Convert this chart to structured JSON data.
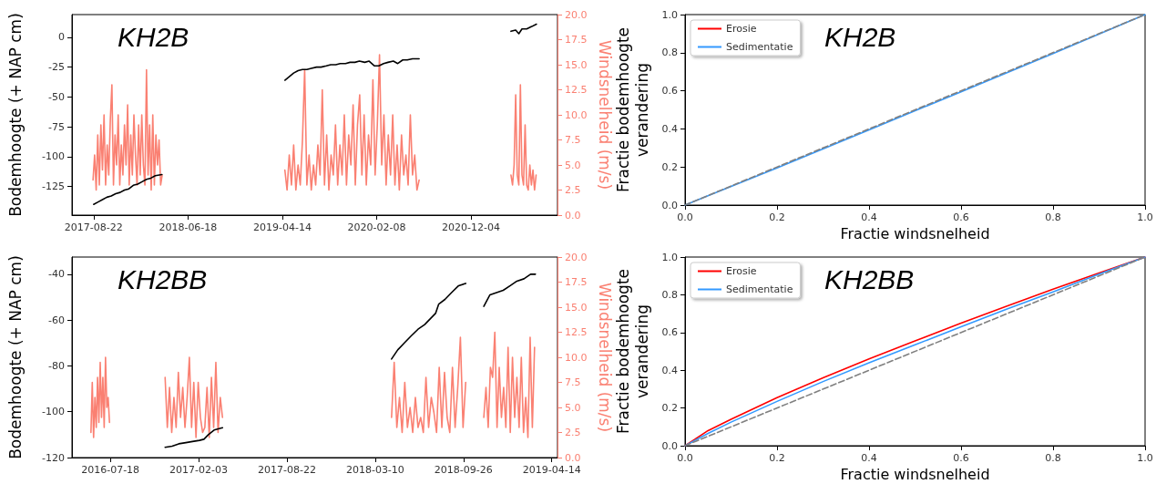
{
  "chart_data": [
    {
      "type": "line",
      "title": "KH2B",
      "ylabel": "Bodemhoogte (+ NAP cm)",
      "y2label": "Windsnelheid (m/s)",
      "xlim": [
        "2017-06-14",
        "2021-09-05"
      ],
      "xticks": [
        "2017-08-22",
        "2018-06-18",
        "2019-04-14",
        "2020-02-08",
        "2020-12-04"
      ],
      "ylim": [
        -149,
        19
      ],
      "yticks": [
        -125,
        -100,
        -75,
        -50,
        -25,
        0
      ],
      "y2lim": [
        0,
        20
      ],
      "y2ticks": [
        {
          "value": 0,
          "label": "0.0"
        },
        {
          "value": 2.5,
          "label": "2.5"
        },
        {
          "value": 5,
          "label": "5.0"
        },
        {
          "value": 7.5,
          "label": "7.5"
        },
        {
          "value": 10,
          "label": "10.0"
        },
        {
          "value": 12.5,
          "label": "12.5"
        },
        {
          "value": 15,
          "label": "15.0"
        },
        {
          "value": 17.5,
          "label": "17.5"
        },
        {
          "value": 20,
          "label": "20.0"
        }
      ],
      "legend": false,
      "marker": "none",
      "series": [
        {
          "color": "#fa8072",
          "axis": "y2",
          "x": [
            "2017-08-20",
            "2017-08-25",
            "2017-08-30",
            "2017-09-04",
            "2017-09-09",
            "2017-09-14",
            "2017-09-19",
            "2017-09-24",
            "2017-09-29",
            "2017-10-04",
            "2017-10-09",
            "2017-10-14",
            "2017-10-19",
            "2017-10-24",
            "2017-10-29",
            "2017-11-03",
            "2017-11-08",
            "2017-11-13",
            "2017-11-18",
            "2017-11-23",
            "2017-11-28",
            "2017-12-03",
            "2017-12-08",
            "2017-12-13",
            "2017-12-18",
            "2017-12-23",
            "2017-12-28",
            "2018-01-02",
            "2018-01-07",
            "2018-01-12",
            "2018-01-17",
            "2018-01-22",
            "2018-01-27",
            "2018-02-01",
            "2018-02-06",
            "2018-02-11",
            "2018-02-16",
            "2018-02-21",
            "2018-02-26",
            "2018-03-03",
            "2018-03-08",
            "2018-03-13",
            "2018-03-18",
            "2018-03-23",
            "2018-03-28",
            "2018-10-01",
            "2019-04-22",
            "2019-04-29",
            "2019-05-06",
            "2019-05-13",
            "2019-05-20",
            "2019-05-27",
            "2019-06-03",
            "2019-06-10",
            "2019-06-17",
            "2019-06-24",
            "2019-07-01",
            "2019-07-08",
            "2019-07-15",
            "2019-07-22",
            "2019-07-29",
            "2019-08-05",
            "2019-08-12",
            "2019-08-19",
            "2019-08-26",
            "2019-09-02",
            "2019-09-09",
            "2019-09-16",
            "2019-09-23",
            "2019-09-30",
            "2019-10-07",
            "2019-10-14",
            "2019-10-21",
            "2019-10-28",
            "2019-11-04",
            "2019-11-11",
            "2019-11-18",
            "2019-11-25",
            "2019-12-02",
            "2019-12-09",
            "2019-12-16",
            "2019-12-23",
            "2019-12-30",
            "2020-01-06",
            "2020-01-13",
            "2020-01-20",
            "2020-01-27",
            "2020-02-03",
            "2020-02-10",
            "2020-02-17",
            "2020-02-24",
            "2020-03-02",
            "2020-03-09",
            "2020-03-16",
            "2020-03-23",
            "2020-03-30",
            "2020-04-06",
            "2020-04-13",
            "2020-04-20",
            "2020-04-27",
            "2020-05-04",
            "2020-05-11",
            "2020-05-18",
            "2020-05-25",
            "2020-06-01",
            "2020-06-08",
            "2020-06-15",
            "2020-06-22",
            "2020-11-01",
            "2021-04-10",
            "2021-04-15",
            "2021-04-20",
            "2021-04-25",
            "2021-04-30",
            "2021-05-05",
            "2021-05-10",
            "2021-05-15",
            "2021-05-20",
            "2021-05-25",
            "2021-05-30",
            "2021-06-04",
            "2021-06-09",
            "2021-06-14",
            "2021-06-19",
            "2021-06-24",
            "2021-06-29"
          ],
          "values": [
            3.5,
            6,
            2.5,
            8,
            3,
            9,
            4.5,
            10,
            3,
            7,
            4,
            9.5,
            13,
            3,
            8,
            5,
            10,
            3,
            7,
            4,
            9,
            5,
            11,
            3,
            8,
            4,
            10,
            6,
            3,
            9,
            4,
            10,
            5,
            3,
            14.5,
            4,
            9,
            2.5,
            10,
            3,
            8,
            5,
            7.5,
            3,
            4,
            null,
            4.5,
            2.5,
            6,
            3,
            7,
            2.5,
            5,
            3,
            7.5,
            14.5,
            3,
            6,
            2.5,
            5,
            3,
            7,
            4,
            12.5,
            3,
            8,
            2.5,
            6,
            4,
            9,
            3,
            7,
            4,
            10,
            3,
            8,
            5,
            11,
            3,
            9,
            12,
            4,
            10,
            3,
            8,
            5,
            13.5,
            4,
            9,
            16,
            5,
            10,
            3,
            8,
            4,
            10,
            3,
            7,
            2.5,
            8,
            4,
            6,
            3,
            10,
            4,
            6,
            2.5,
            3.5,
            null,
            4,
            3,
            5,
            12,
            4,
            3,
            13,
            4,
            3,
            9,
            3,
            2.5,
            5,
            3,
            4.5,
            2.5,
            4
          ]
        },
        {
          "color": "#000000",
          "x": [
            "2017-08-22",
            "2017-09-05",
            "2017-09-19",
            "2017-10-03",
            "2017-10-17",
            "2017-10-31",
            "2017-11-14",
            "2017-11-28",
            "2017-12-12",
            "2017-12-26",
            "2018-01-09",
            "2018-01-23",
            "2018-02-06",
            "2018-02-20",
            "2018-03-06",
            "2018-03-27",
            "2018-10-01",
            "2019-04-22",
            "2019-05-06",
            "2019-05-20",
            "2019-06-03",
            "2019-06-17",
            "2019-07-01",
            "2019-07-15",
            "2019-08-01",
            "2019-08-15",
            "2019-09-01",
            "2019-09-15",
            "2019-10-01",
            "2019-10-15",
            "2019-11-01",
            "2019-11-15",
            "2019-12-01",
            "2019-12-15",
            "2020-01-01",
            "2020-01-15",
            "2020-02-01",
            "2020-02-15",
            "2020-03-01",
            "2020-03-15",
            "2020-04-01",
            "2020-04-15",
            "2020-05-01",
            "2020-05-15",
            "2020-06-01",
            "2020-06-22",
            "2020-11-01",
            "2021-04-10",
            "2021-04-25",
            "2021-05-05",
            "2021-05-15",
            "2021-05-30",
            "2021-06-15",
            "2021-06-30"
          ],
          "values": [
            -140,
            -138,
            -136,
            -134,
            -133,
            -131,
            -130,
            -128,
            -127,
            -124,
            -123,
            -121,
            -119,
            -118,
            -116,
            -115,
            null,
            -36,
            -33,
            -30,
            -28,
            -27,
            -27,
            -26,
            -25,
            -25,
            -24,
            -23,
            -23,
            -22,
            -22,
            -21,
            -21,
            -20,
            -21,
            -20,
            -24,
            -24,
            -22,
            -21,
            -20,
            -22,
            -19,
            -19,
            -18,
            -18,
            null,
            5,
            6,
            3,
            7,
            7,
            9,
            11
          ]
        }
      ]
    },
    {
      "type": "line",
      "title": "KH2B",
      "xlabel": "Fractie windsnelheid",
      "ylabel": "Fractie bodemhoogte verandering",
      "xlim": [
        0,
        1
      ],
      "xticks": [
        {
          "value": 0,
          "label": "0.0"
        },
        {
          "value": 0.2,
          "label": "0.2"
        },
        {
          "value": 0.4,
          "label": "0.4"
        },
        {
          "value": 0.6,
          "label": "0.6"
        },
        {
          "value": 0.8,
          "label": "0.8"
        },
        {
          "value": 1,
          "label": "1.0"
        }
      ],
      "ylim": [
        0,
        1
      ],
      "yticks": [
        {
          "value": 0,
          "label": "0.0"
        },
        {
          "value": 0.2,
          "label": "0.2"
        },
        {
          "value": 0.4,
          "label": "0.4"
        },
        {
          "value": 0.6,
          "label": "0.6"
        },
        {
          "value": 0.8,
          "label": "0.8"
        },
        {
          "value": 1,
          "label": "1.0"
        }
      ],
      "legend": "top left",
      "marker": "none",
      "series": [
        {
          "name": "Erosie",
          "color": "#ff0000"
        },
        {
          "name": "Sedimentatie",
          "color": "#3399ff",
          "x": [
            0,
            0.2,
            0.4,
            0.6,
            0.8,
            1
          ],
          "values": [
            0,
            0.195,
            0.395,
            0.595,
            0.795,
            1
          ]
        },
        {
          "color": "#808080",
          "line_style": "dashed",
          "x": [
            0,
            1
          ],
          "values": [
            0,
            1
          ]
        }
      ]
    },
    {
      "type": "line",
      "title": "KH2BB",
      "ylabel": "Bodemhoogte (+ NAP cm)",
      "y2label": "Windsnelheid (m/s)",
      "xlim": [
        "2016-04-22",
        "2019-04-27"
      ],
      "xticks": [
        "2016-07-18",
        "2017-02-03",
        "2017-08-22",
        "2018-03-10",
        "2018-09-26",
        "2019-04-14"
      ],
      "ylim": [
        -120,
        -32.5
      ],
      "yticks": [
        -120,
        -100,
        -80,
        -60,
        -40
      ],
      "y2lim": [
        0,
        20
      ],
      "y2ticks": [
        {
          "value": 0,
          "label": "0.0"
        },
        {
          "value": 2.5,
          "label": "2.5"
        },
        {
          "value": 5,
          "label": "5.0"
        },
        {
          "value": 7.5,
          "label": "7.5"
        },
        {
          "value": 10,
          "label": "10.0"
        },
        {
          "value": 12.5,
          "label": "12.5"
        },
        {
          "value": 15,
          "label": "15.0"
        },
        {
          "value": 17.5,
          "label": "17.5"
        },
        {
          "value": 20,
          "label": "20.0"
        }
      ],
      "legend": false,
      "marker": "none",
      "series": [
        {
          "color": "#fa8072",
          "axis": "y2",
          "x": [
            "2016-06-04",
            "2016-06-07",
            "2016-06-10",
            "2016-06-13",
            "2016-06-16",
            "2016-06-19",
            "2016-06-22",
            "2016-06-25",
            "2016-06-28",
            "2016-07-01",
            "2016-07-04",
            "2016-07-07",
            "2016-07-10",
            "2016-07-13",
            "2016-07-16",
            "2016-09-15",
            "2016-11-19",
            "2016-11-24",
            "2016-11-29",
            "2016-12-04",
            "2016-12-09",
            "2016-12-14",
            "2016-12-19",
            "2016-12-24",
            "2016-12-29",
            "2017-01-03",
            "2017-01-08",
            "2017-01-13",
            "2017-01-18",
            "2017-01-23",
            "2017-01-28",
            "2017-02-02",
            "2017-02-07",
            "2017-02-12",
            "2017-02-17",
            "2017-02-22",
            "2017-02-27",
            "2017-03-04",
            "2017-03-09",
            "2017-03-14",
            "2017-03-19",
            "2017-03-24",
            "2017-03-29",
            "2017-10-01",
            "2018-04-16",
            "2018-04-22",
            "2018-04-28",
            "2018-05-04",
            "2018-05-10",
            "2018-05-16",
            "2018-05-22",
            "2018-05-28",
            "2018-06-03",
            "2018-06-09",
            "2018-06-15",
            "2018-06-21",
            "2018-06-27",
            "2018-07-03",
            "2018-07-09",
            "2018-07-15",
            "2018-07-21",
            "2018-07-27",
            "2018-08-02",
            "2018-08-08",
            "2018-08-14",
            "2018-08-20",
            "2018-08-26",
            "2018-09-01",
            "2018-09-07",
            "2018-09-13",
            "2018-09-19",
            "2018-09-25",
            "2018-10-01",
            "2018-10-20",
            "2018-11-11",
            "2018-11-16",
            "2018-11-21",
            "2018-11-26",
            "2018-12-01",
            "2018-12-06",
            "2018-12-11",
            "2018-12-16",
            "2018-12-21",
            "2018-12-26",
            "2018-12-31",
            "2019-01-05",
            "2019-01-10",
            "2019-01-15",
            "2019-01-20",
            "2019-01-25",
            "2019-01-30",
            "2019-02-04",
            "2019-02-09",
            "2019-02-14",
            "2019-02-19",
            "2019-02-24",
            "2019-03-01",
            "2019-03-06"
          ],
          "values": [
            2.5,
            7.5,
            2,
            6,
            3,
            8,
            3.5,
            9.5,
            4,
            8,
            3,
            10,
            5,
            6,
            3.5,
            null,
            8,
            3,
            7,
            2.5,
            6,
            3,
            8.5,
            4,
            7,
            3,
            6,
            10,
            3,
            7.5,
            2,
            7.5,
            4,
            2.5,
            3,
            7,
            2,
            8,
            3,
            9.5,
            2.5,
            6,
            4,
            null,
            4,
            9.5,
            3,
            6,
            2.5,
            7.5,
            3,
            5,
            2.5,
            6,
            3,
            4,
            2.5,
            8,
            3,
            6,
            4.5,
            2.5,
            9,
            3,
            8.5,
            4,
            2.5,
            9,
            3,
            7,
            12,
            3,
            7.5,
            null,
            4,
            7,
            3,
            9,
            8,
            12.5,
            3,
            9,
            4,
            7,
            3,
            11,
            2.5,
            10,
            4,
            8,
            3,
            10,
            2.5,
            6,
            2,
            12,
            3,
            11
          ]
        },
        {
          "color": "#000000",
          "x": [
            "2016-11-19",
            "2016-12-05",
            "2016-12-20",
            "2017-01-05",
            "2017-01-20",
            "2017-02-05",
            "2017-02-15",
            "2017-02-25",
            "2017-03-10",
            "2017-03-29",
            "2017-10-01",
            "2018-04-16",
            "2018-04-30",
            "2018-05-15",
            "2018-05-30",
            "2018-06-15",
            "2018-06-30",
            "2018-07-15",
            "2018-07-25",
            "2018-08-01",
            "2018-08-15",
            "2018-08-30",
            "2018-09-15",
            "2018-10-01",
            "2018-10-20",
            "2018-11-11",
            "2018-11-25",
            "2018-12-10",
            "2018-12-25",
            "2019-01-10",
            "2019-01-25",
            "2019-02-10",
            "2019-02-25",
            "2019-03-08"
          ],
          "values": [
            -115.5,
            -115,
            -114,
            -113.5,
            -113,
            -112.5,
            -112,
            -110,
            -108,
            -107,
            null,
            -77,
            -73,
            -70,
            -67,
            -64,
            -62,
            -59,
            -57,
            -53,
            -51,
            -48,
            -45,
            -44,
            null,
            -54,
            -49,
            -48,
            -47,
            -45,
            -43,
            -42,
            -40,
            -40
          ]
        }
      ]
    },
    {
      "type": "line",
      "title": "KH2BB",
      "xlabel": "Fractie windsnelheid",
      "ylabel": "Fractie bodemhoogte verandering",
      "xlim": [
        0,
        1
      ],
      "xticks": [
        {
          "value": 0,
          "label": "0.0"
        },
        {
          "value": 0.2,
          "label": "0.2"
        },
        {
          "value": 0.4,
          "label": "0.4"
        },
        {
          "value": 0.6,
          "label": "0.6"
        },
        {
          "value": 0.8,
          "label": "0.8"
        },
        {
          "value": 1,
          "label": "1.0"
        }
      ],
      "ylim": [
        0,
        1
      ],
      "yticks": [
        {
          "value": 0,
          "label": "0.0"
        },
        {
          "value": 0.2,
          "label": "0.2"
        },
        {
          "value": 0.4,
          "label": "0.4"
        },
        {
          "value": 0.6,
          "label": "0.6"
        },
        {
          "value": 0.8,
          "label": "0.8"
        },
        {
          "value": 1,
          "label": "1.0"
        }
      ],
      "legend": "top left",
      "marker": "none",
      "series": [
        {
          "name": "Erosie",
          "color": "#ff0000",
          "x": [
            0,
            0.05,
            0.1,
            0.2,
            0.3,
            0.4,
            0.5,
            0.6,
            0.7,
            0.8,
            0.9,
            1
          ],
          "values": [
            0,
            0.08,
            0.14,
            0.255,
            0.36,
            0.46,
            0.555,
            0.65,
            0.74,
            0.83,
            0.915,
            1
          ]
        },
        {
          "name": "Sedimentatie",
          "color": "#3399ff",
          "x": [
            0,
            0.05,
            0.1,
            0.2,
            0.3,
            0.4,
            0.5,
            0.6,
            0.7,
            0.8,
            0.9,
            1
          ],
          "values": [
            0,
            0.065,
            0.125,
            0.235,
            0.34,
            0.44,
            0.535,
            0.63,
            0.725,
            0.815,
            0.91,
            1
          ]
        },
        {
          "color": "#808080",
          "line_style": "dashed",
          "x": [
            0,
            1
          ],
          "values": [
            0,
            1
          ]
        }
      ]
    }
  ]
}
